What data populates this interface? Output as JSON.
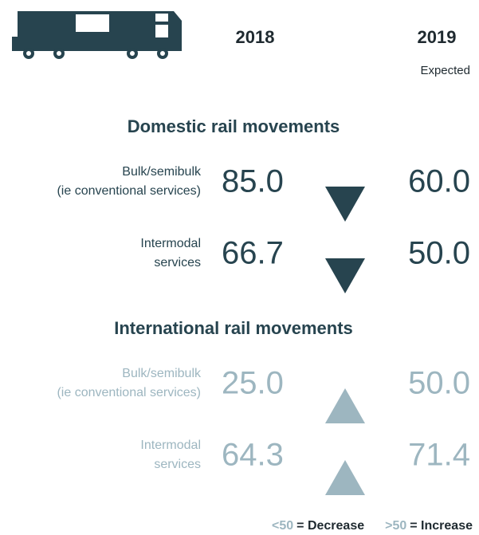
{
  "header": {
    "year_a": "2018",
    "year_b": "2019",
    "year_b_note": "Expected"
  },
  "sections": [
    {
      "title": "Domestic rail movements",
      "color": "#27444f",
      "rows": [
        {
          "label": [
            "Bulk/semibulk",
            "(ie conventional services)"
          ],
          "value_a": "85.0",
          "value_b": "60.0",
          "trend": "down"
        },
        {
          "label": [
            "Intermodal",
            "services"
          ],
          "value_a": "66.7",
          "value_b": "50.0",
          "trend": "down"
        }
      ]
    },
    {
      "title": "International rail movements",
      "color": "#9db6c0",
      "rows": [
        {
          "label": [
            "Bulk/semibulk",
            "(ie conventional services)"
          ],
          "value_a": "25.0",
          "value_b": "50.0",
          "trend": "up"
        },
        {
          "label": [
            "Intermodal",
            "services"
          ],
          "value_a": "64.3",
          "value_b": "71.4",
          "trend": "up"
        }
      ]
    }
  ],
  "legend": {
    "decrease_key": "<50",
    "decrease_text": "= Decrease",
    "increase_key": ">50",
    "increase_text": "= Increase"
  }
}
